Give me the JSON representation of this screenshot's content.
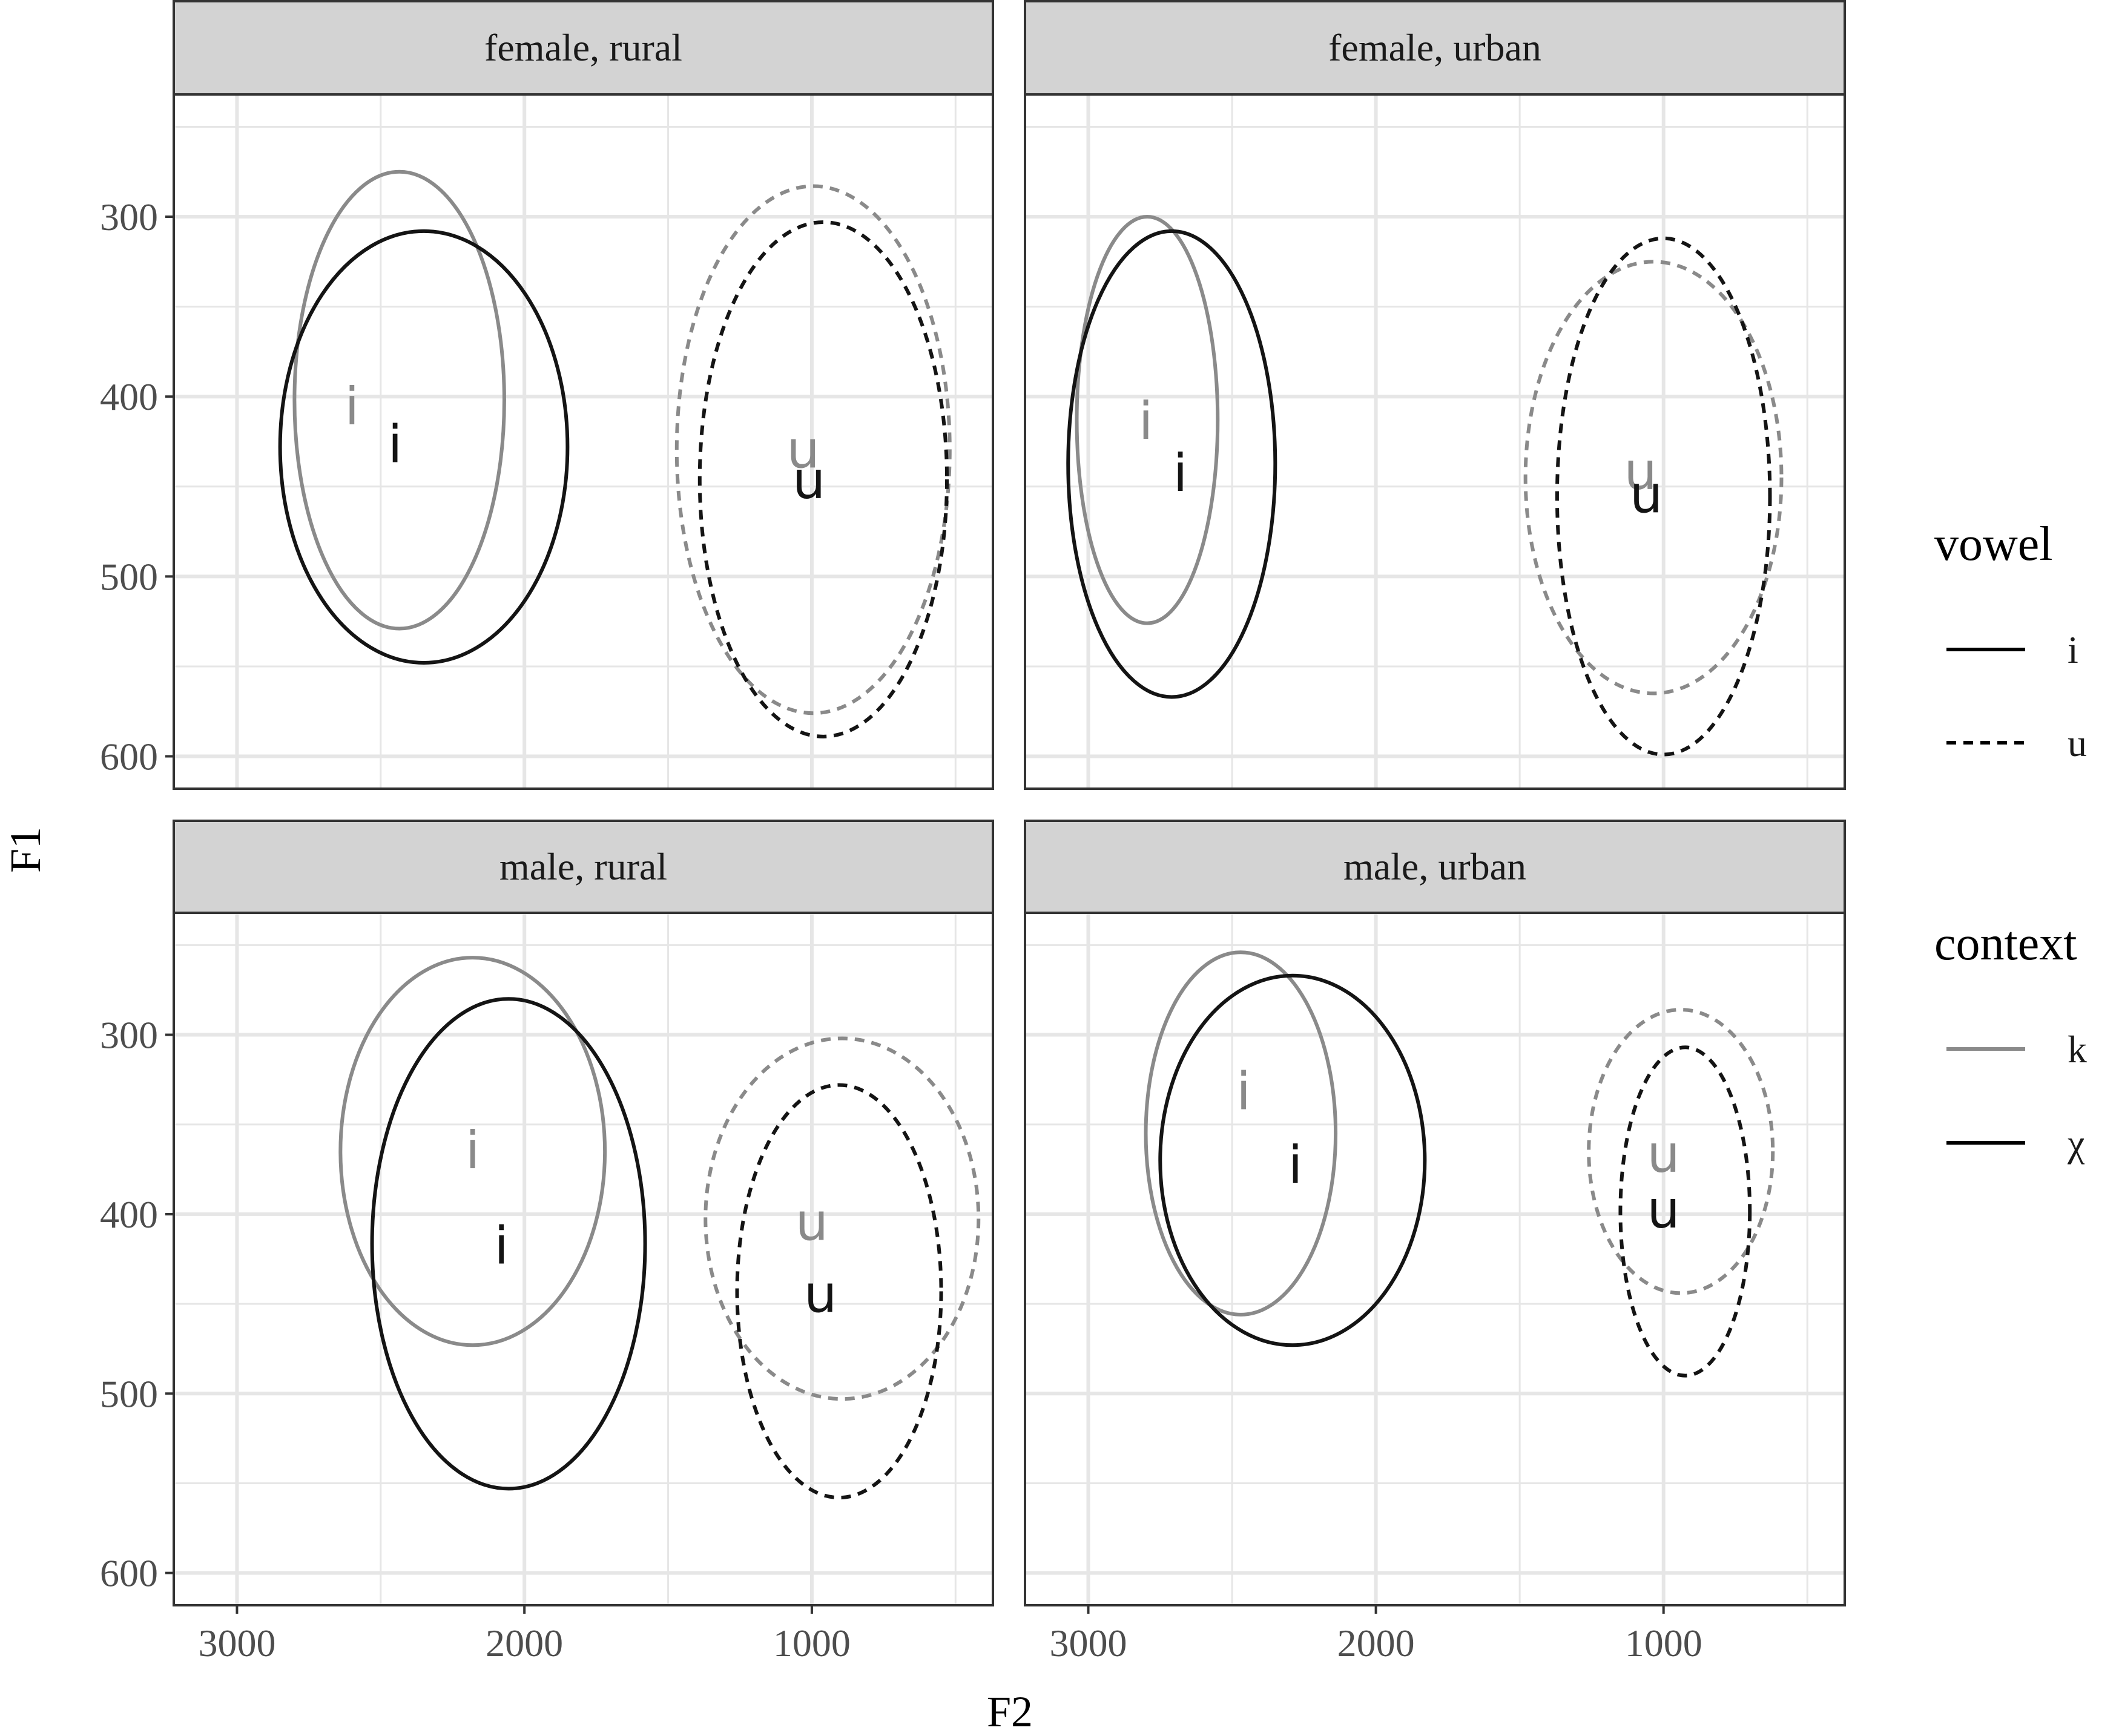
{
  "chart_data": {
    "type": "scatter",
    "xlabel": "F2",
    "ylabel": "F1",
    "x_reversed": true,
    "y_reversed": true,
    "xlim": [
      3220,
      370
    ],
    "ylim": [
      232,
      618
    ],
    "x_ticks": [
      {
        "value": 3000,
        "label": "3000"
      },
      {
        "value": 2000,
        "label": "2000"
      },
      {
        "value": 1000,
        "label": "1000"
      }
    ],
    "y_ticks": [
      {
        "value": 300,
        "label": "300"
      },
      {
        "value": 400,
        "label": "400"
      },
      {
        "value": 500,
        "label": "500"
      },
      {
        "value": 600,
        "label": "600"
      }
    ],
    "grid": true,
    "legend_position": "right",
    "legends": [
      {
        "title": "vowel",
        "entries": [
          {
            "label": "i",
            "line": "solid",
            "color": "#000000"
          },
          {
            "label": "u",
            "line": "dashed",
            "color": "#000000"
          }
        ]
      },
      {
        "title": "context",
        "entries": [
          {
            "label": "k",
            "line": "solid",
            "color": "#8a8a8a"
          },
          {
            "label": "χ",
            "line": "solid",
            "color": "#000000"
          }
        ]
      }
    ],
    "colors": {
      "k": "#8a8a8a",
      "χ": "#141414",
      "strip": "#d3d3d3",
      "grid": "#e6e6e6"
    },
    "panels": [
      {
        "title": "female, rural",
        "groups": [
          {
            "vowel": "i",
            "context": "k",
            "mean": [
              2600,
              406
            ],
            "ellipse": {
              "f2_min": 2800,
              "f2_max": 2070,
              "f1_min": 275,
              "f1_max": 529
            }
          },
          {
            "vowel": "i",
            "context": "χ",
            "mean": [
              2450,
              427
            ],
            "ellipse": {
              "f2_min": 2850,
              "f2_max": 1850,
              "f1_min": 308,
              "f1_max": 548
            }
          },
          {
            "vowel": "u",
            "context": "k",
            "mean": [
              1030,
              430
            ],
            "ellipse": {
              "f2_min": 1470,
              "f2_max": 520,
              "f1_min": 283,
              "f1_max": 576
            }
          },
          {
            "vowel": "u",
            "context": "χ",
            "mean": [
              1010,
              447
            ],
            "ellipse": {
              "f2_min": 1390,
              "f2_max": 530,
              "f1_min": 303,
              "f1_max": 589
            }
          }
        ]
      },
      {
        "title": "female, urban",
        "groups": [
          {
            "vowel": "i",
            "context": "k",
            "mean": [
              2800,
              414
            ],
            "ellipse": {
              "f2_min": 3040,
              "f2_max": 2550,
              "f1_min": 300,
              "f1_max": 526
            }
          },
          {
            "vowel": "i",
            "context": "χ",
            "mean": [
              2680,
              443
            ],
            "ellipse": {
              "f2_min": 3070,
              "f2_max": 2350,
              "f1_min": 308,
              "f1_max": 567
            }
          },
          {
            "vowel": "u",
            "context": "k",
            "mean": [
              1080,
              442
            ],
            "ellipse": {
              "f2_min": 1480,
              "f2_max": 590,
              "f1_min": 325,
              "f1_max": 565
            }
          },
          {
            "vowel": "u",
            "context": "χ",
            "mean": [
              1060,
              455
            ],
            "ellipse": {
              "f2_min": 1370,
              "f2_max": 630,
              "f1_min": 312,
              "f1_max": 599
            }
          }
        ]
      },
      {
        "title": "male, rural",
        "groups": [
          {
            "vowel": "i",
            "context": "k",
            "mean": [
              2180,
              365
            ],
            "ellipse": {
              "f2_min": 2640,
              "f2_max": 1720,
              "f1_min": 257,
              "f1_max": 473
            }
          },
          {
            "vowel": "i",
            "context": "χ",
            "mean": [
              2080,
              418
            ],
            "ellipse": {
              "f2_min": 2530,
              "f2_max": 1580,
              "f1_min": 280,
              "f1_max": 553
            }
          },
          {
            "vowel": "u",
            "context": "k",
            "mean": [
              1000,
              405
            ],
            "ellipse": {
              "f2_min": 1370,
              "f2_max": 420,
              "f1_min": 302,
              "f1_max": 503
            }
          },
          {
            "vowel": "u",
            "context": "χ",
            "mean": [
              970,
              445
            ],
            "ellipse": {
              "f2_min": 1260,
              "f2_max": 550,
              "f1_min": 328,
              "f1_max": 558
            }
          }
        ]
      },
      {
        "title": "male, urban",
        "groups": [
          {
            "vowel": "i",
            "context": "k",
            "mean": [
              2460,
              332
            ],
            "ellipse": {
              "f2_min": 2800,
              "f2_max": 2140,
              "f1_min": 254,
              "f1_max": 456
            }
          },
          {
            "vowel": "i",
            "context": "χ",
            "mean": [
              2280,
              373
            ],
            "ellipse": {
              "f2_min": 2750,
              "f2_max": 1830,
              "f1_min": 267,
              "f1_max": 473
            }
          },
          {
            "vowel": "u",
            "context": "k",
            "mean": [
              1000,
              367
            ],
            "ellipse": {
              "f2_min": 1260,
              "f2_max": 620,
              "f1_min": 286,
              "f1_max": 444
            }
          },
          {
            "vowel": "u",
            "context": "χ",
            "mean": [
              1000,
              398
            ],
            "ellipse": {
              "f2_min": 1150,
              "f2_max": 700,
              "f1_min": 307,
              "f1_max": 490
            }
          }
        ]
      }
    ]
  }
}
